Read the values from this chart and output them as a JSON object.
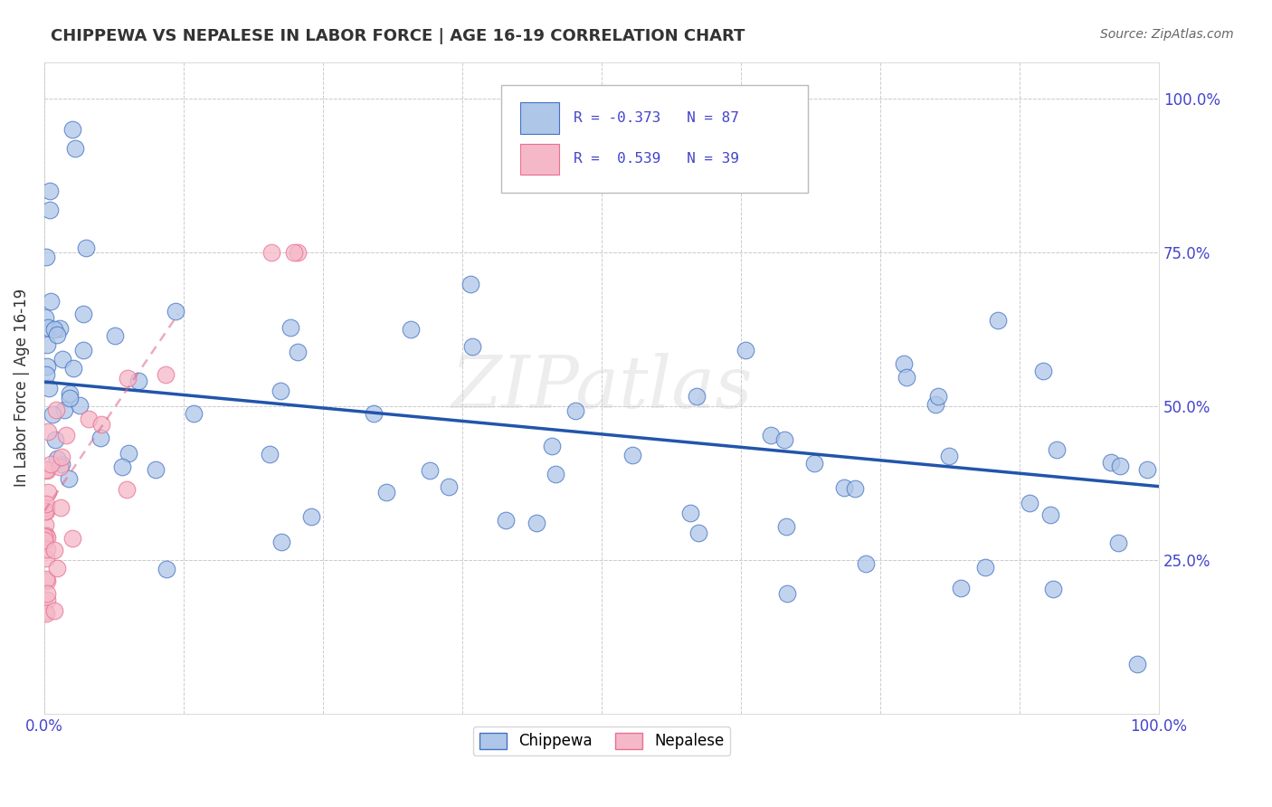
{
  "title": "CHIPPEWA VS NEPALESE IN LABOR FORCE | AGE 16-19 CORRELATION CHART",
  "source": "Source: ZipAtlas.com",
  "ylabel": "In Labor Force | Age 16-19",
  "xlim": [
    0.0,
    1.0
  ],
  "ylim": [
    0.0,
    1.06
  ],
  "legend_label1": "Chippewa",
  "legend_label2": "Nepalese",
  "R1": -0.373,
  "N1": 87,
  "R2": 0.539,
  "N2": 39,
  "chippewa_face_color": "#aec6e8",
  "chippewa_edge_color": "#4472c4",
  "nepalese_face_color": "#f5b8c8",
  "nepalese_edge_color": "#e87090",
  "chippewa_line_color": "#2255aa",
  "nepalese_line_color": "#dd6688",
  "watermark": "ZIPatlas",
  "background_color": "#ffffff",
  "grid_color": "#cccccc",
  "tick_color": "#4444cc",
  "title_color": "#333333",
  "ylabel_color": "#333333"
}
